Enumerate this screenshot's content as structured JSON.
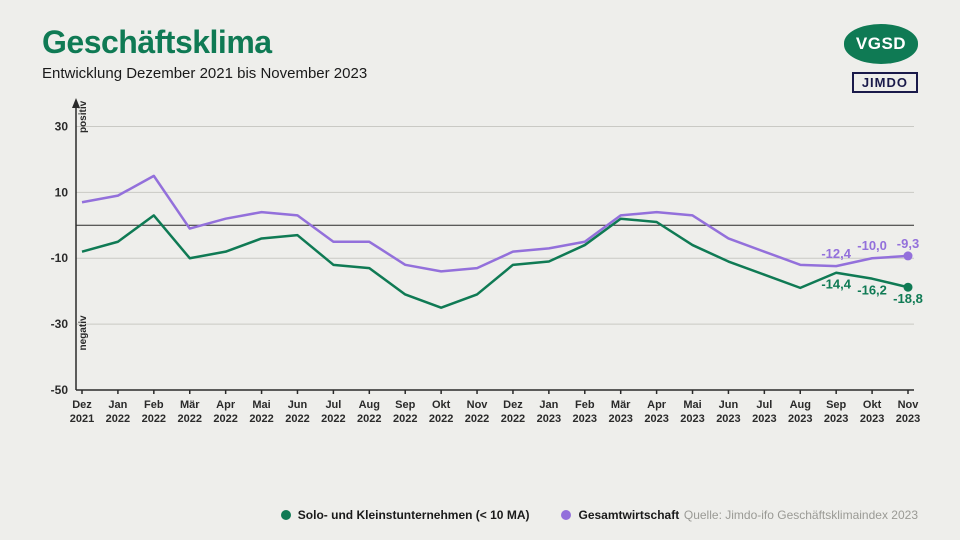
{
  "title": "Geschäftsklima",
  "subtitle": "Entwicklung Dezember 2021 bis November 2023",
  "logos": {
    "vgsd": "VGSD",
    "jimdo": "JIMDO"
  },
  "chart": {
    "type": "line",
    "background_color": "#eeeeeb",
    "grid_color": "#c9c9c4",
    "axis_color": "#2a2a2a",
    "ylim": [
      -50,
      35
    ],
    "yticks": [
      -50,
      -30,
      -10,
      10,
      30
    ],
    "y_label_positive": "positiv",
    "y_label_negative": "negativ",
    "x_labels": [
      [
        "Dez",
        "2021"
      ],
      [
        "Jan",
        "2022"
      ],
      [
        "Feb",
        "2022"
      ],
      [
        "Mär",
        "2022"
      ],
      [
        "Apr",
        "2022"
      ],
      [
        "Mai",
        "2022"
      ],
      [
        "Jun",
        "2022"
      ],
      [
        "Jul",
        "2022"
      ],
      [
        "Aug",
        "2022"
      ],
      [
        "Sep",
        "2022"
      ],
      [
        "Okt",
        "2022"
      ],
      [
        "Nov",
        "2022"
      ],
      [
        "Dez",
        "2022"
      ],
      [
        "Jan",
        "2023"
      ],
      [
        "Feb",
        "2023"
      ],
      [
        "Mär",
        "2023"
      ],
      [
        "Apr",
        "2023"
      ],
      [
        "Mai",
        "2023"
      ],
      [
        "Jun",
        "2023"
      ],
      [
        "Jul",
        "2023"
      ],
      [
        "Aug",
        "2023"
      ],
      [
        "Sep",
        "2023"
      ],
      [
        "Okt",
        "2023"
      ],
      [
        "Nov",
        "2023"
      ]
    ],
    "series": [
      {
        "name": "Solo- und Kleinstunternehmen (< 10 MA)",
        "color": "#0f7a54",
        "line_width": 2.5,
        "values": [
          -8,
          -5,
          3,
          -10,
          -8,
          -4,
          -3,
          -12,
          -13,
          -21,
          -25,
          -21,
          -12,
          -11,
          -6,
          2,
          1,
          -6,
          -11,
          -15,
          -19,
          -14.4,
          -16.2,
          -18.8
        ],
        "end_labels": [
          {
            "i": 21,
            "text": "-14,4",
            "dy": 16
          },
          {
            "i": 22,
            "text": "-16,2",
            "dy": 16
          },
          {
            "i": 23,
            "text": "-18,8",
            "dy": 16
          }
        ]
      },
      {
        "name": "Gesamtwirtschaft",
        "color": "#9370db",
        "line_width": 2.5,
        "values": [
          7,
          9,
          15,
          -1,
          2,
          4,
          3,
          -5,
          -5,
          -12,
          -14,
          -13,
          -8,
          -7,
          -5,
          3,
          4,
          3,
          -4,
          -8,
          -12,
          -12.4,
          -10.0,
          -9.3
        ],
        "end_labels": [
          {
            "i": 21,
            "text": "-12,4",
            "dy": -8
          },
          {
            "i": 22,
            "text": "-10,0",
            "dy": -8
          },
          {
            "i": 23,
            "text": "-9,3",
            "dy": -8
          }
        ]
      }
    ],
    "source": "Quelle: Jimdo-ifo Geschäftsklimaindex 2023"
  }
}
